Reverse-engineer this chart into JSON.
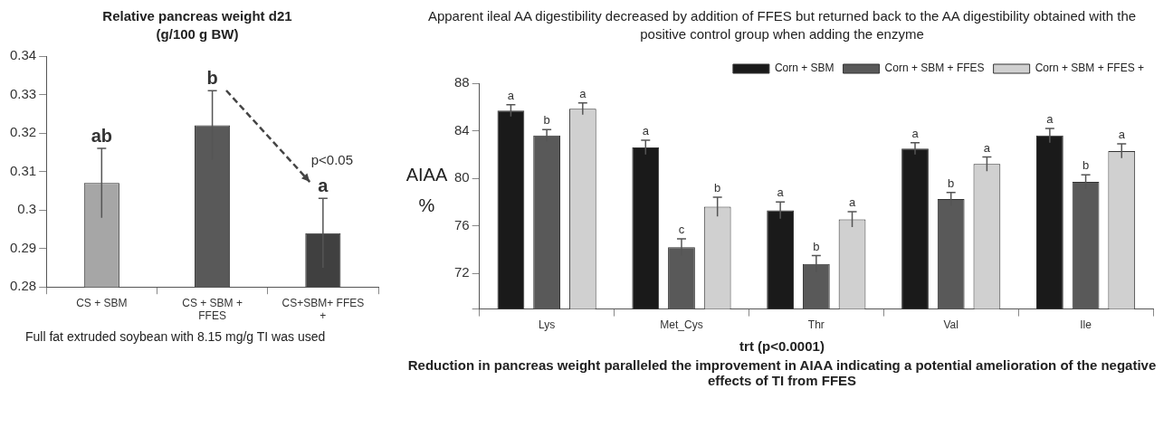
{
  "chart_data": [
    {
      "type": "bar",
      "title": "Relative pancreas weight d21 (g/100 g BW)",
      "categories": [
        "CS + SBM",
        "CS + SBM + FFES",
        "CS+SBM+ FFES +"
      ],
      "values": [
        0.307,
        0.322,
        0.294
      ],
      "colors": [
        "#a6a6a6",
        "#595959",
        "#404040"
      ],
      "errors": [
        0.009,
        0.009,
        0.009
      ],
      "value_labels": [
        "ab",
        "b",
        "a"
      ],
      "ylim": [
        0.28,
        0.34
      ],
      "yticks": [
        0.28,
        0.29,
        0.3,
        0.31,
        0.32,
        0.33,
        0.34
      ],
      "grid": false,
      "legend": false,
      "annotations": [
        "p<0.05",
        "Full fat extruded soybean with 8.15 mg/g TI was used"
      ]
    },
    {
      "type": "bar",
      "title": "Apparent ileal AA digestibility decreased by addition of FFES but returned back to the AA digestibility obtained with the positive control group when adding the enzyme",
      "ylabel": "AIAA %",
      "categories": [
        "Lys",
        "Met_Cys",
        "Thr",
        "Val",
        "Ile"
      ],
      "series": [
        {
          "name": "Corn + SBM",
          "color": "#1a1a1a",
          "values": [
            85.7,
            82.6,
            77.3,
            82.5,
            83.6
          ],
          "errors": [
            0.5,
            0.6,
            0.7,
            0.5,
            0.6
          ],
          "value_labels": [
            "a",
            "a",
            "a",
            "a",
            "a"
          ]
        },
        {
          "name": "Corn + SBM + FFES",
          "color": "#595959",
          "values": [
            83.6,
            74.2,
            72.8,
            78.25,
            79.7
          ],
          "errors": [
            0.5,
            0.7,
            0.7,
            0.55,
            0.6
          ],
          "value_labels": [
            "b",
            "c",
            "b",
            "b",
            "b"
          ]
        },
        {
          "name": "Corn + SBM + FFES +",
          "color": "#d0d0d0",
          "values": [
            85.85,
            77.6,
            76.55,
            81.2,
            82.3
          ],
          "errors": [
            0.5,
            0.8,
            0.65,
            0.6,
            0.6
          ],
          "value_labels": [
            "a",
            "b",
            "a",
            "a",
            "a"
          ]
        }
      ],
      "ylim": [
        69,
        88
      ],
      "yticks": [
        {
          "value": 69,
          "label": null
        },
        72,
        76,
        80,
        84,
        88
      ],
      "grid": false,
      "legend": "top right",
      "annotations": [
        "trt (p<0.0001)",
        "Reduction in pancreas weight paralleled the improvement in AIAA indicating a potential amelioration of the negative effects of TI from FFES"
      ]
    }
  ]
}
